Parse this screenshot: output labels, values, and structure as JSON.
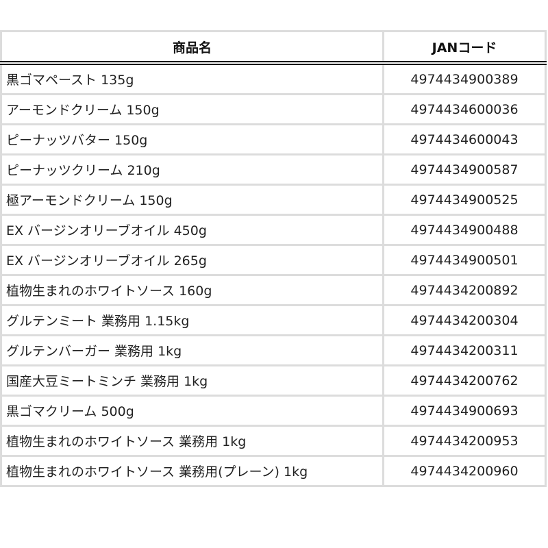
{
  "table": {
    "headers": [
      "商品名",
      "JANコード"
    ],
    "rows": [
      {
        "name": "黒ゴマペースト 135g",
        "jan": "4974434900389"
      },
      {
        "name": "アーモンドクリーム 150g",
        "jan": "4974434600036"
      },
      {
        "name": "ピーナッツバター 150g",
        "jan": "4974434600043"
      },
      {
        "name": "ピーナッツクリーム 210g",
        "jan": "4974434900587"
      },
      {
        "name": "極アーモンドクリーム 150g",
        "jan": "4974434900525"
      },
      {
        "name": "EX バージンオリーブオイル 450g",
        "jan": "4974434900488"
      },
      {
        "name": "EX バージンオリーブオイル 265g",
        "jan": "4974434900501"
      },
      {
        "name": "植物生まれのホワイトソース 160g",
        "jan": "4974434200892"
      },
      {
        "name": "グルテンミート 業務用 1.15kg",
        "jan": "4974434200304"
      },
      {
        "name": "グルテンバーガー 業務用 1kg",
        "jan": "4974434200311"
      },
      {
        "name": "国産大豆ミートミンチ 業務用 1kg",
        "jan": "4974434200762"
      },
      {
        "name": "黒ゴマクリーム 500g",
        "jan": "4974434900693"
      },
      {
        "name": "植物生まれのホワイトソース 業務用 1kg",
        "jan": "4974434200953"
      },
      {
        "name": "植物生まれのホワイトソース 業務用(プレーン) 1kg",
        "jan": "4974434200960"
      }
    ]
  }
}
